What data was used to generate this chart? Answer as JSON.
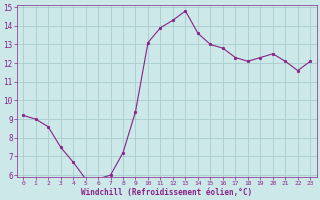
{
  "x": [
    0,
    1,
    2,
    3,
    4,
    5,
    6,
    7,
    8,
    9,
    10,
    11,
    12,
    13,
    14,
    15,
    16,
    17,
    18,
    19,
    20,
    21,
    22,
    23
  ],
  "y": [
    9.2,
    9.0,
    8.6,
    7.5,
    6.7,
    5.8,
    5.8,
    6.0,
    7.2,
    9.4,
    13.1,
    13.9,
    14.3,
    14.8,
    13.6,
    13.0,
    12.8,
    12.3,
    12.1,
    12.3,
    12.5,
    12.1,
    11.6,
    12.1
  ],
  "line_color": "#882288",
  "marker_color": "#882288",
  "bg_color": "#cce8e8",
  "grid_color": "#aacccc",
  "xlabel": "Windchill (Refroidissement éolien,°C)",
  "xlabel_color": "#882288",
  "tick_color": "#882288",
  "ylim": [
    6,
    15
  ],
  "xlim": [
    -0.5,
    23.5
  ],
  "yticks": [
    6,
    7,
    8,
    9,
    10,
    11,
    12,
    13,
    14,
    15
  ],
  "xticks": [
    0,
    1,
    2,
    3,
    4,
    5,
    6,
    7,
    8,
    9,
    10,
    11,
    12,
    13,
    14,
    15,
    16,
    17,
    18,
    19,
    20,
    21,
    22,
    23
  ]
}
